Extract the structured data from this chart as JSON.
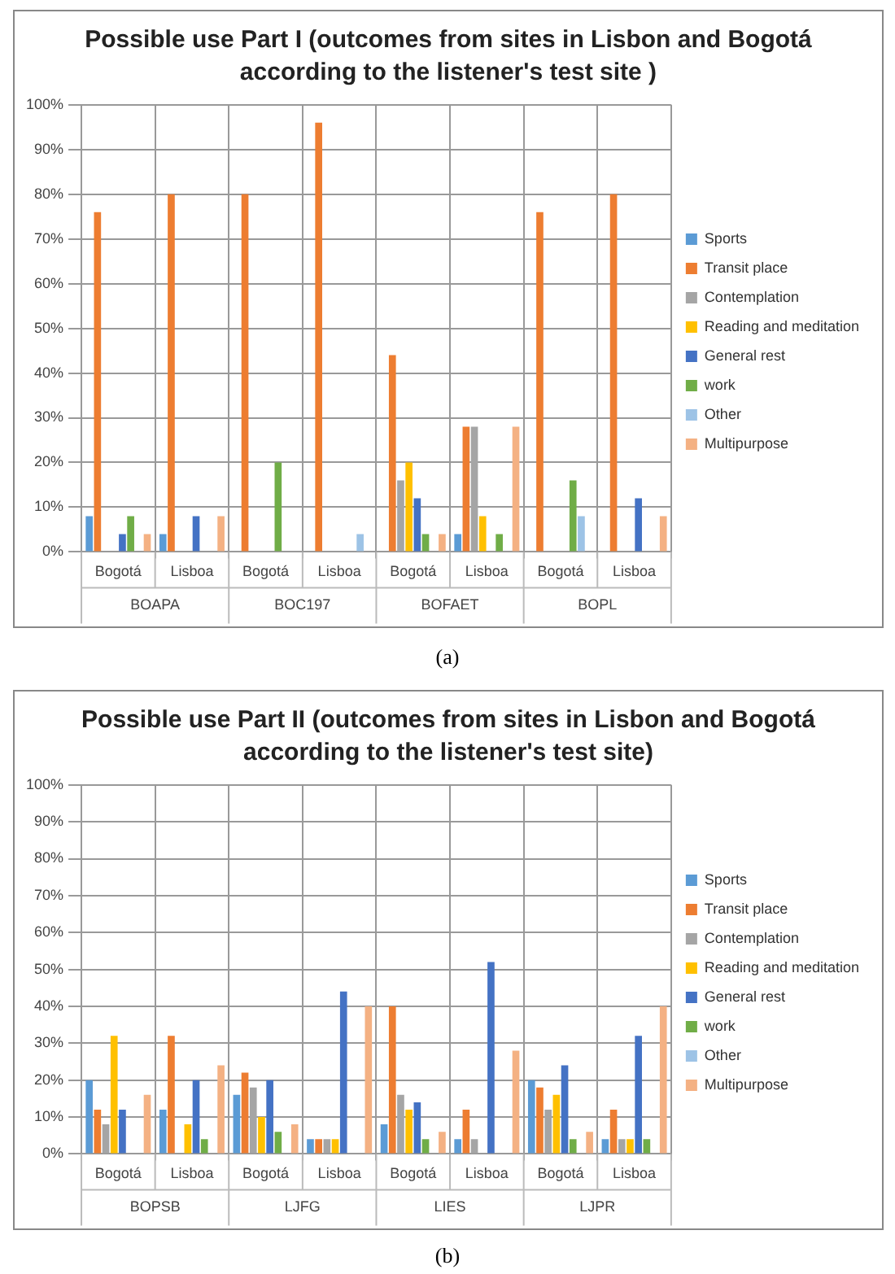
{
  "chart_data": [
    {
      "type": "bar",
      "title": "Possible use Part I (outcomes from sites in Lisbon and Bogotá according to the listener's test site )",
      "categories": [
        "Bogotá",
        "Lisboa",
        "Bogotá",
        "Lisboa",
        "Bogotá",
        "Lisboa",
        "Bogotá",
        "Lisboa"
      ],
      "annotations": [
        "BOAPA",
        "BOC197",
        "BOFAET",
        "BOPL",
        "(a)"
      ],
      "ylim": [
        0,
        100
      ],
      "yticks": [
        {
          "value": 0,
          "label": "0%"
        },
        {
          "value": 10,
          "label": "10%"
        },
        {
          "value": 20,
          "label": "20%"
        },
        {
          "value": 30,
          "label": "30%"
        },
        {
          "value": 40,
          "label": "40%"
        },
        {
          "value": 50,
          "label": "50%"
        },
        {
          "value": 60,
          "label": "60%"
        },
        {
          "value": 70,
          "label": "70%"
        },
        {
          "value": 80,
          "label": "80%"
        },
        {
          "value": 90,
          "label": "90%"
        },
        {
          "value": 100,
          "label": "100%"
        }
      ],
      "grid": true,
      "legend": "right",
      "series": [
        {
          "name": "Sports",
          "color": "#5b9bd5",
          "values": [
            8,
            4,
            0,
            0,
            0,
            4,
            0,
            0
          ]
        },
        {
          "name": "Transit place",
          "color": "#ed7d31",
          "values": [
            76,
            80,
            80,
            96,
            44,
            28,
            76,
            80
          ]
        },
        {
          "name": "Contemplation",
          "color": "#a5a5a5",
          "values": [
            0,
            0,
            0,
            0,
            16,
            28,
            0,
            0
          ]
        },
        {
          "name": "Reading and meditation",
          "color": "#ffc000",
          "values": [
            0,
            0,
            0,
            0,
            20,
            8,
            0,
            0
          ]
        },
        {
          "name": "General rest",
          "color": "#4472c4",
          "values": [
            4,
            8,
            0,
            0,
            12,
            0,
            0,
            12
          ]
        },
        {
          "name": "work",
          "color": "#70ad47",
          "values": [
            8,
            0,
            20,
            0,
            4,
            4,
            16,
            0
          ]
        },
        {
          "name": "Other",
          "color": "#9dc3e6",
          "values": [
            0,
            0,
            0,
            4,
            0,
            0,
            8,
            0
          ]
        },
        {
          "name": "Multipurpose",
          "color": "#f4b183",
          "values": [
            4,
            8,
            0,
            0,
            4,
            28,
            0,
            8
          ]
        }
      ]
    },
    {
      "type": "bar",
      "title": "Possible use Part II (outcomes from sites in Lisbon and Bogotá according to the listener's test site)",
      "categories": [
        "Bogotá",
        "Lisboa",
        "Bogotá",
        "Lisboa",
        "Bogotá",
        "Lisboa",
        "Bogotá",
        "Lisboa"
      ],
      "annotations": [
        "BOPSB",
        "LJFG",
        "LIES",
        "LJPR",
        "(b)"
      ],
      "ylim": [
        0,
        100
      ],
      "yticks": [
        {
          "value": 0,
          "label": "0%"
        },
        {
          "value": 10,
          "label": "10%"
        },
        {
          "value": 20,
          "label": "20%"
        },
        {
          "value": 30,
          "label": "30%"
        },
        {
          "value": 40,
          "label": "40%"
        },
        {
          "value": 50,
          "label": "50%"
        },
        {
          "value": 60,
          "label": "60%"
        },
        {
          "value": 70,
          "label": "70%"
        },
        {
          "value": 80,
          "label": "80%"
        },
        {
          "value": 90,
          "label": "90%"
        },
        {
          "value": 100,
          "label": "100%"
        }
      ],
      "grid": true,
      "legend": "right",
      "series": [
        {
          "name": "Sports",
          "color": "#5b9bd5",
          "values": [
            20,
            12,
            16,
            4,
            8,
            4,
            20,
            4
          ]
        },
        {
          "name": "Transit place",
          "color": "#ed7d31",
          "values": [
            12,
            32,
            22,
            4,
            40,
            12,
            18,
            12
          ]
        },
        {
          "name": "Contemplation",
          "color": "#a5a5a5",
          "values": [
            8,
            0,
            18,
            4,
            16,
            4,
            12,
            4
          ]
        },
        {
          "name": "Reading and meditation",
          "color": "#ffc000",
          "values": [
            32,
            8,
            10,
            4,
            12,
            0,
            16,
            4
          ]
        },
        {
          "name": "General rest",
          "color": "#4472c4",
          "values": [
            12,
            20,
            20,
            44,
            14,
            52,
            24,
            32
          ]
        },
        {
          "name": "work",
          "color": "#70ad47",
          "values": [
            0,
            4,
            6,
            0,
            4,
            0,
            4,
            4
          ]
        },
        {
          "name": "Other",
          "color": "#9dc3e6",
          "values": [
            0,
            0,
            0,
            0,
            0,
            0,
            0,
            0
          ]
        },
        {
          "name": "Multipurpose",
          "color": "#f4b183",
          "values": [
            16,
            24,
            8,
            40,
            6,
            28,
            6,
            40
          ]
        }
      ]
    }
  ]
}
